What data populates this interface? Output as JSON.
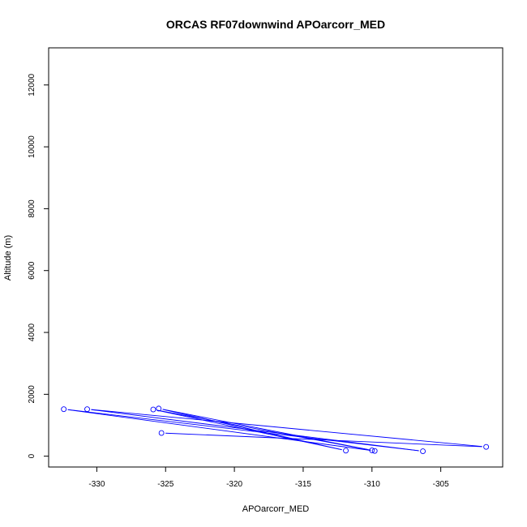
{
  "chart_data": {
    "type": "line",
    "title": "ORCAS RF07downwind APOarcorr_MED",
    "xlabel": "APOarcorr_MED",
    "ylabel": "Altitude (m)",
    "xlim": [
      -333.5,
      -300.5
    ],
    "ylim": [
      -350,
      13200
    ],
    "x_ticks": [
      -330,
      -325,
      -320,
      -315,
      -310,
      -305
    ],
    "y_ticks": [
      0,
      2000,
      4000,
      6000,
      8000,
      10000,
      12000
    ],
    "grid": false,
    "legend": "none",
    "colors": {
      "series": "#0000ff",
      "axis": "#000000"
    },
    "series": [
      {
        "points": [
          {
            "x": -325.3,
            "y": 750
          },
          {
            "x": -301.7,
            "y": 300
          },
          {
            "x": -330.7,
            "y": 1520
          },
          {
            "x": -306.3,
            "y": 160
          },
          {
            "x": -332.4,
            "y": 1520
          },
          {
            "x": -309.8,
            "y": 170
          },
          {
            "x": -325.9,
            "y": 1510
          },
          {
            "x": -311.9,
            "y": 180
          },
          {
            "x": -325.5,
            "y": 1540
          },
          {
            "x": -310.0,
            "y": 190
          }
        ]
      }
    ]
  }
}
